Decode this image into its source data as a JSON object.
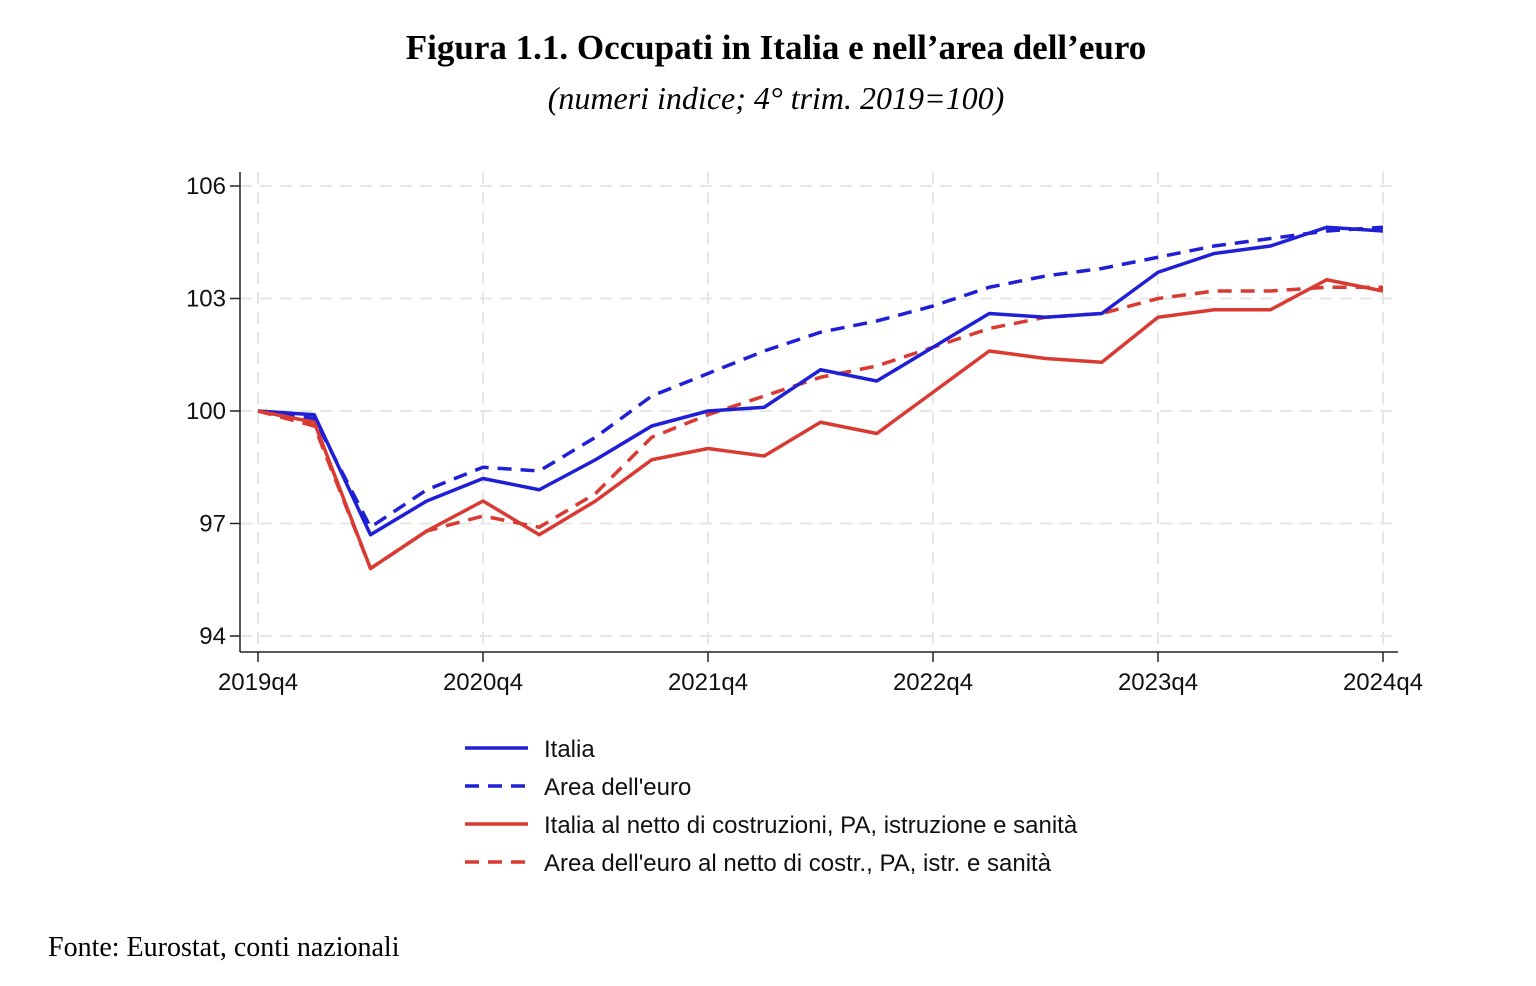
{
  "title": "Figura 1.1. Occupati in Italia e nell’area dell’euro",
  "subtitle": "(numeri indice; 4° trim. 2019=100)",
  "source": "Fonte: Eurostat, conti nazionali",
  "chart_data": {
    "type": "line",
    "xlabel": "",
    "ylabel": "",
    "ylim": [
      94,
      106
    ],
    "yticks": [
      94,
      97,
      100,
      103,
      106
    ],
    "xlim": [
      0,
      20
    ],
    "xticks": [
      {
        "pos": 0,
        "label": "2019q4"
      },
      {
        "pos": 4,
        "label": "2020q4"
      },
      {
        "pos": 8,
        "label": "2021q4"
      },
      {
        "pos": 12,
        "label": "2022q4"
      },
      {
        "pos": 16,
        "label": "2023q4"
      },
      {
        "pos": 20,
        "label": "2024q4"
      }
    ],
    "categories": [
      "2019q4",
      "2020q1",
      "2020q2",
      "2020q3",
      "2020q4",
      "2021q1",
      "2021q2",
      "2021q3",
      "2021q4",
      "2022q1",
      "2022q2",
      "2022q3",
      "2022q4",
      "2023q1",
      "2023q2",
      "2023q3",
      "2023q4",
      "2024q1",
      "2024q2",
      "2024q3",
      "2024q4"
    ],
    "grid": true,
    "legend_position": "bottom",
    "series": [
      {
        "name": "Italia",
        "color": "#1f1fd6",
        "dash": "solid",
        "values": [
          100.0,
          99.9,
          96.7,
          97.6,
          98.2,
          97.9,
          98.7,
          99.6,
          100.0,
          100.1,
          101.1,
          100.8,
          101.7,
          102.6,
          102.5,
          102.6,
          103.7,
          104.2,
          104.4,
          104.9,
          104.8
        ]
      },
      {
        "name": "Area dell'euro",
        "color": "#1f1fd6",
        "dash": "dashed",
        "values": [
          100.0,
          99.8,
          96.9,
          97.9,
          98.5,
          98.4,
          99.3,
          100.4,
          101.0,
          101.6,
          102.1,
          102.4,
          102.8,
          103.3,
          103.6,
          103.8,
          104.1,
          104.4,
          104.6,
          104.8,
          104.9
        ]
      },
      {
        "name": "Italia al netto di costruzioni, PA, istruzione e sanità",
        "color": "#d93a32",
        "dash": "solid",
        "values": [
          100.0,
          99.7,
          95.8,
          96.8,
          97.6,
          96.7,
          97.6,
          98.7,
          99.0,
          98.8,
          99.7,
          99.4,
          100.5,
          101.6,
          101.4,
          101.3,
          102.5,
          102.7,
          102.7,
          103.5,
          103.2
        ]
      },
      {
        "name": "Area dell'euro al netto di costr., PA, istr. e sanità",
        "color": "#d93a32",
        "dash": "dashed",
        "values": [
          100.0,
          99.6,
          95.8,
          96.8,
          97.2,
          96.9,
          97.8,
          99.3,
          99.9,
          100.4,
          100.9,
          101.2,
          101.7,
          102.2,
          102.5,
          102.6,
          103.0,
          103.2,
          103.2,
          103.3,
          103.3
        ]
      }
    ]
  }
}
